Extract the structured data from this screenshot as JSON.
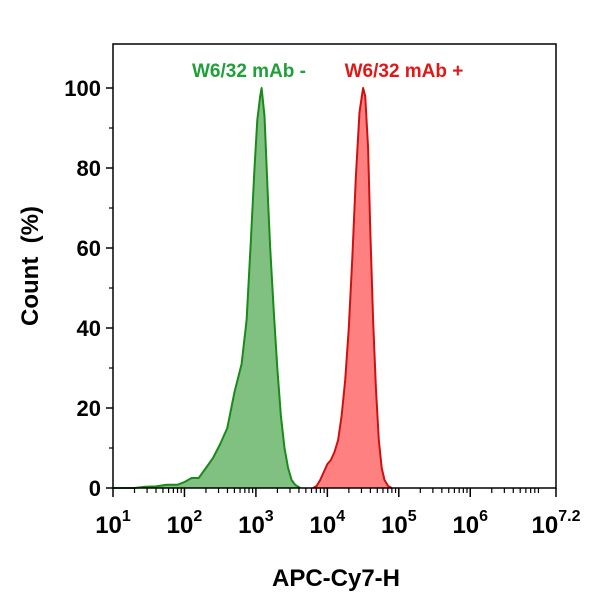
{
  "chart_data": {
    "type": "area",
    "xscale": "log",
    "xlim": [
      1,
      7.2
    ],
    "ylim": [
      0,
      110
    ],
    "xlabel": "APC-Cy7-H",
    "ylabel": "Count  (%)",
    "x_ticks": [
      {
        "base": "10",
        "exp": "1"
      },
      {
        "base": "10",
        "exp": "2"
      },
      {
        "base": "10",
        "exp": "3"
      },
      {
        "base": "10",
        "exp": "4"
      },
      {
        "base": "10",
        "exp": "5"
      },
      {
        "base": "10",
        "exp": "6"
      },
      {
        "base": "10",
        "exp": "7.2"
      }
    ],
    "y_ticks": [
      "0",
      "20",
      "40",
      "60",
      "80",
      "100"
    ],
    "series": [
      {
        "name": "W6/32 mAb -",
        "color": "#1a8a1a",
        "fill": "#80c080",
        "points": [
          [
            1.0,
            0
          ],
          [
            1.3,
            0
          ],
          [
            1.45,
            0.3
          ],
          [
            1.6,
            0.4
          ],
          [
            1.75,
            0.8
          ],
          [
            1.9,
            0.8
          ],
          [
            2.0,
            1.5
          ],
          [
            2.1,
            2.5
          ],
          [
            2.2,
            2.5
          ],
          [
            2.3,
            5
          ],
          [
            2.4,
            7.5
          ],
          [
            2.5,
            11
          ],
          [
            2.6,
            15
          ],
          [
            2.7,
            24
          ],
          [
            2.8,
            31
          ],
          [
            2.87,
            42
          ],
          [
            2.93,
            62
          ],
          [
            2.98,
            80
          ],
          [
            3.02,
            92
          ],
          [
            3.06,
            98
          ],
          [
            3.08,
            100
          ],
          [
            3.12,
            93
          ],
          [
            3.17,
            72
          ],
          [
            3.2,
            60
          ],
          [
            3.25,
            44
          ],
          [
            3.3,
            30
          ],
          [
            3.35,
            18
          ],
          [
            3.4,
            10
          ],
          [
            3.45,
            5
          ],
          [
            3.5,
            2
          ],
          [
            3.55,
            0.8
          ],
          [
            3.62,
            0
          ]
        ]
      },
      {
        "name": "W6/32 mAb +",
        "color": "#d01010",
        "fill": "#ff8080",
        "points": [
          [
            3.8,
            0
          ],
          [
            3.85,
            0.5
          ],
          [
            3.9,
            2
          ],
          [
            3.95,
            4
          ],
          [
            4.0,
            6
          ],
          [
            4.05,
            7
          ],
          [
            4.1,
            9
          ],
          [
            4.15,
            12
          ],
          [
            4.2,
            18
          ],
          [
            4.25,
            27
          ],
          [
            4.3,
            40
          ],
          [
            4.35,
            58
          ],
          [
            4.4,
            78
          ],
          [
            4.45,
            94
          ],
          [
            4.5,
            100
          ],
          [
            4.53,
            98
          ],
          [
            4.57,
            85
          ],
          [
            4.6,
            65
          ],
          [
            4.64,
            42
          ],
          [
            4.68,
            25
          ],
          [
            4.72,
            12
          ],
          [
            4.76,
            5
          ],
          [
            4.8,
            2
          ],
          [
            4.85,
            0.5
          ],
          [
            4.9,
            0
          ]
        ]
      }
    ],
    "grid": false,
    "legend": "top-center"
  }
}
